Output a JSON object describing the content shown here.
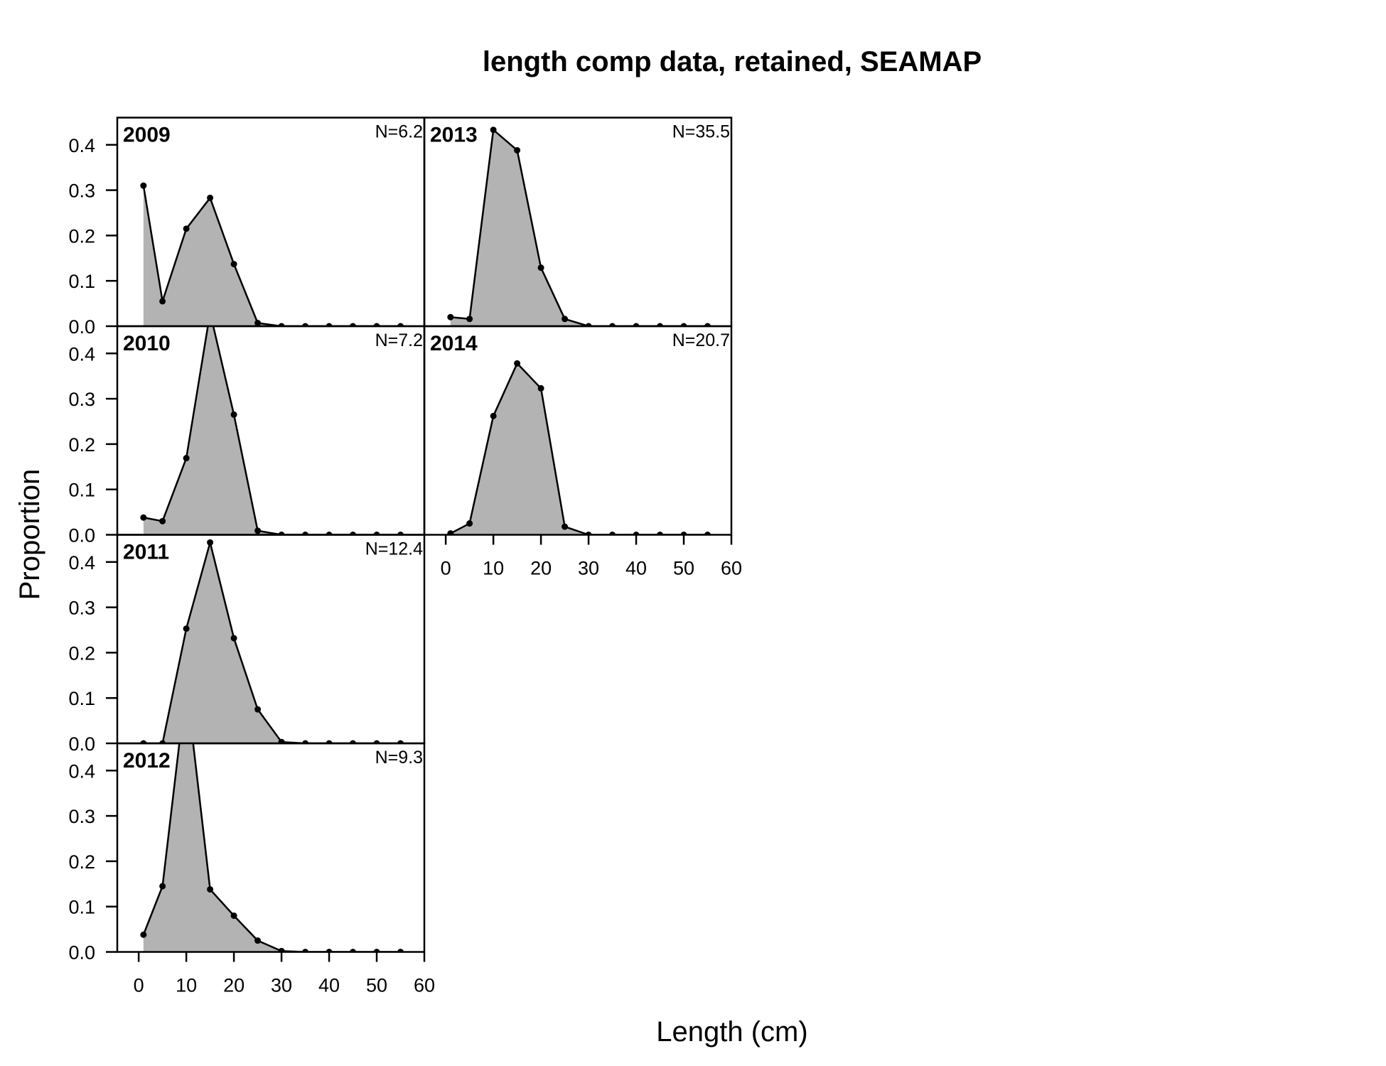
{
  "chart_data": {
    "type": "area",
    "title": "length comp data, retained, SEAMAP",
    "xlabel": "Length (cm)",
    "ylabel": "Proportion",
    "xlim": [
      -4.5,
      60
    ],
    "ylim": [
      0,
      0.46
    ],
    "x_ticks": [
      0,
      10,
      20,
      30,
      40,
      50,
      60
    ],
    "y_ticks": [
      0.0,
      0.1,
      0.2,
      0.3,
      0.4
    ],
    "x_tick_labels": [
      "0",
      "10",
      "20",
      "30",
      "40",
      "50",
      "60"
    ],
    "y_tick_labels": [
      "0.0",
      "0.1",
      "0.2",
      "0.3",
      "0.4"
    ],
    "x": [
      1,
      5,
      10,
      15,
      20,
      25,
      30,
      35,
      40,
      45,
      50,
      55
    ],
    "fill_color": "#b3b3b3",
    "line_color": "#000000",
    "panels": [
      {
        "year": "2009",
        "n_label": "N=6.2",
        "values": [
          0.31,
          0.055,
          0.215,
          0.283,
          0.137,
          0.007,
          0.0,
          0.0,
          0.0,
          0.0,
          0.0,
          0.0
        ]
      },
      {
        "year": "2010",
        "n_label": "N=7.2",
        "values": [
          0.038,
          0.03,
          0.169,
          0.49,
          0.265,
          0.009,
          0.0,
          0.0,
          0.0,
          0.0,
          0.0,
          0.0
        ]
      },
      {
        "year": "2011",
        "n_label": "N=12.4",
        "values": [
          0.0,
          0.0,
          0.253,
          0.443,
          0.232,
          0.075,
          0.003,
          0.0,
          0.0,
          0.0,
          0.0,
          0.0
        ]
      },
      {
        "year": "2012",
        "n_label": "N=9.3",
        "values": [
          0.038,
          0.145,
          0.59,
          0.138,
          0.08,
          0.025,
          0.002,
          0.0,
          0.0,
          0.0,
          0.0,
          0.0
        ]
      },
      {
        "year": "2013",
        "n_label": "N=35.5",
        "values": [
          0.02,
          0.016,
          0.433,
          0.388,
          0.129,
          0.016,
          0.0,
          0.0,
          0.0,
          0.0,
          0.0,
          0.0
        ]
      },
      {
        "year": "2014",
        "n_label": "N=20.7",
        "values": [
          0.003,
          0.025,
          0.262,
          0.378,
          0.323,
          0.018,
          0.0,
          0.0,
          0.0,
          0.0,
          0.0,
          0.0
        ]
      }
    ]
  }
}
